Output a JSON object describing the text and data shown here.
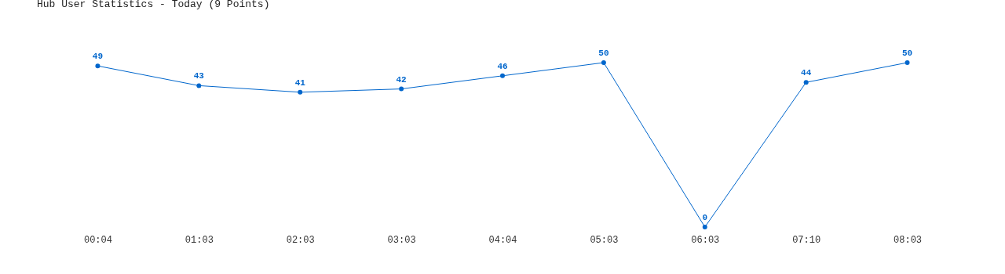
{
  "chart_data": {
    "type": "line",
    "title": "Hub User Statistics - Today (9 Points)",
    "categories": [
      "00:04",
      "01:03",
      "02:03",
      "03:03",
      "04:04",
      "05:03",
      "06:03",
      "07:10",
      "08:03"
    ],
    "series": [
      {
        "color": "#0066cc",
        "values": [
          49,
          43,
          41,
          42,
          46,
          50,
          0,
          44,
          50
        ]
      }
    ],
    "data_labels": true,
    "marker": "circle",
    "tick_labels": "x"
  }
}
